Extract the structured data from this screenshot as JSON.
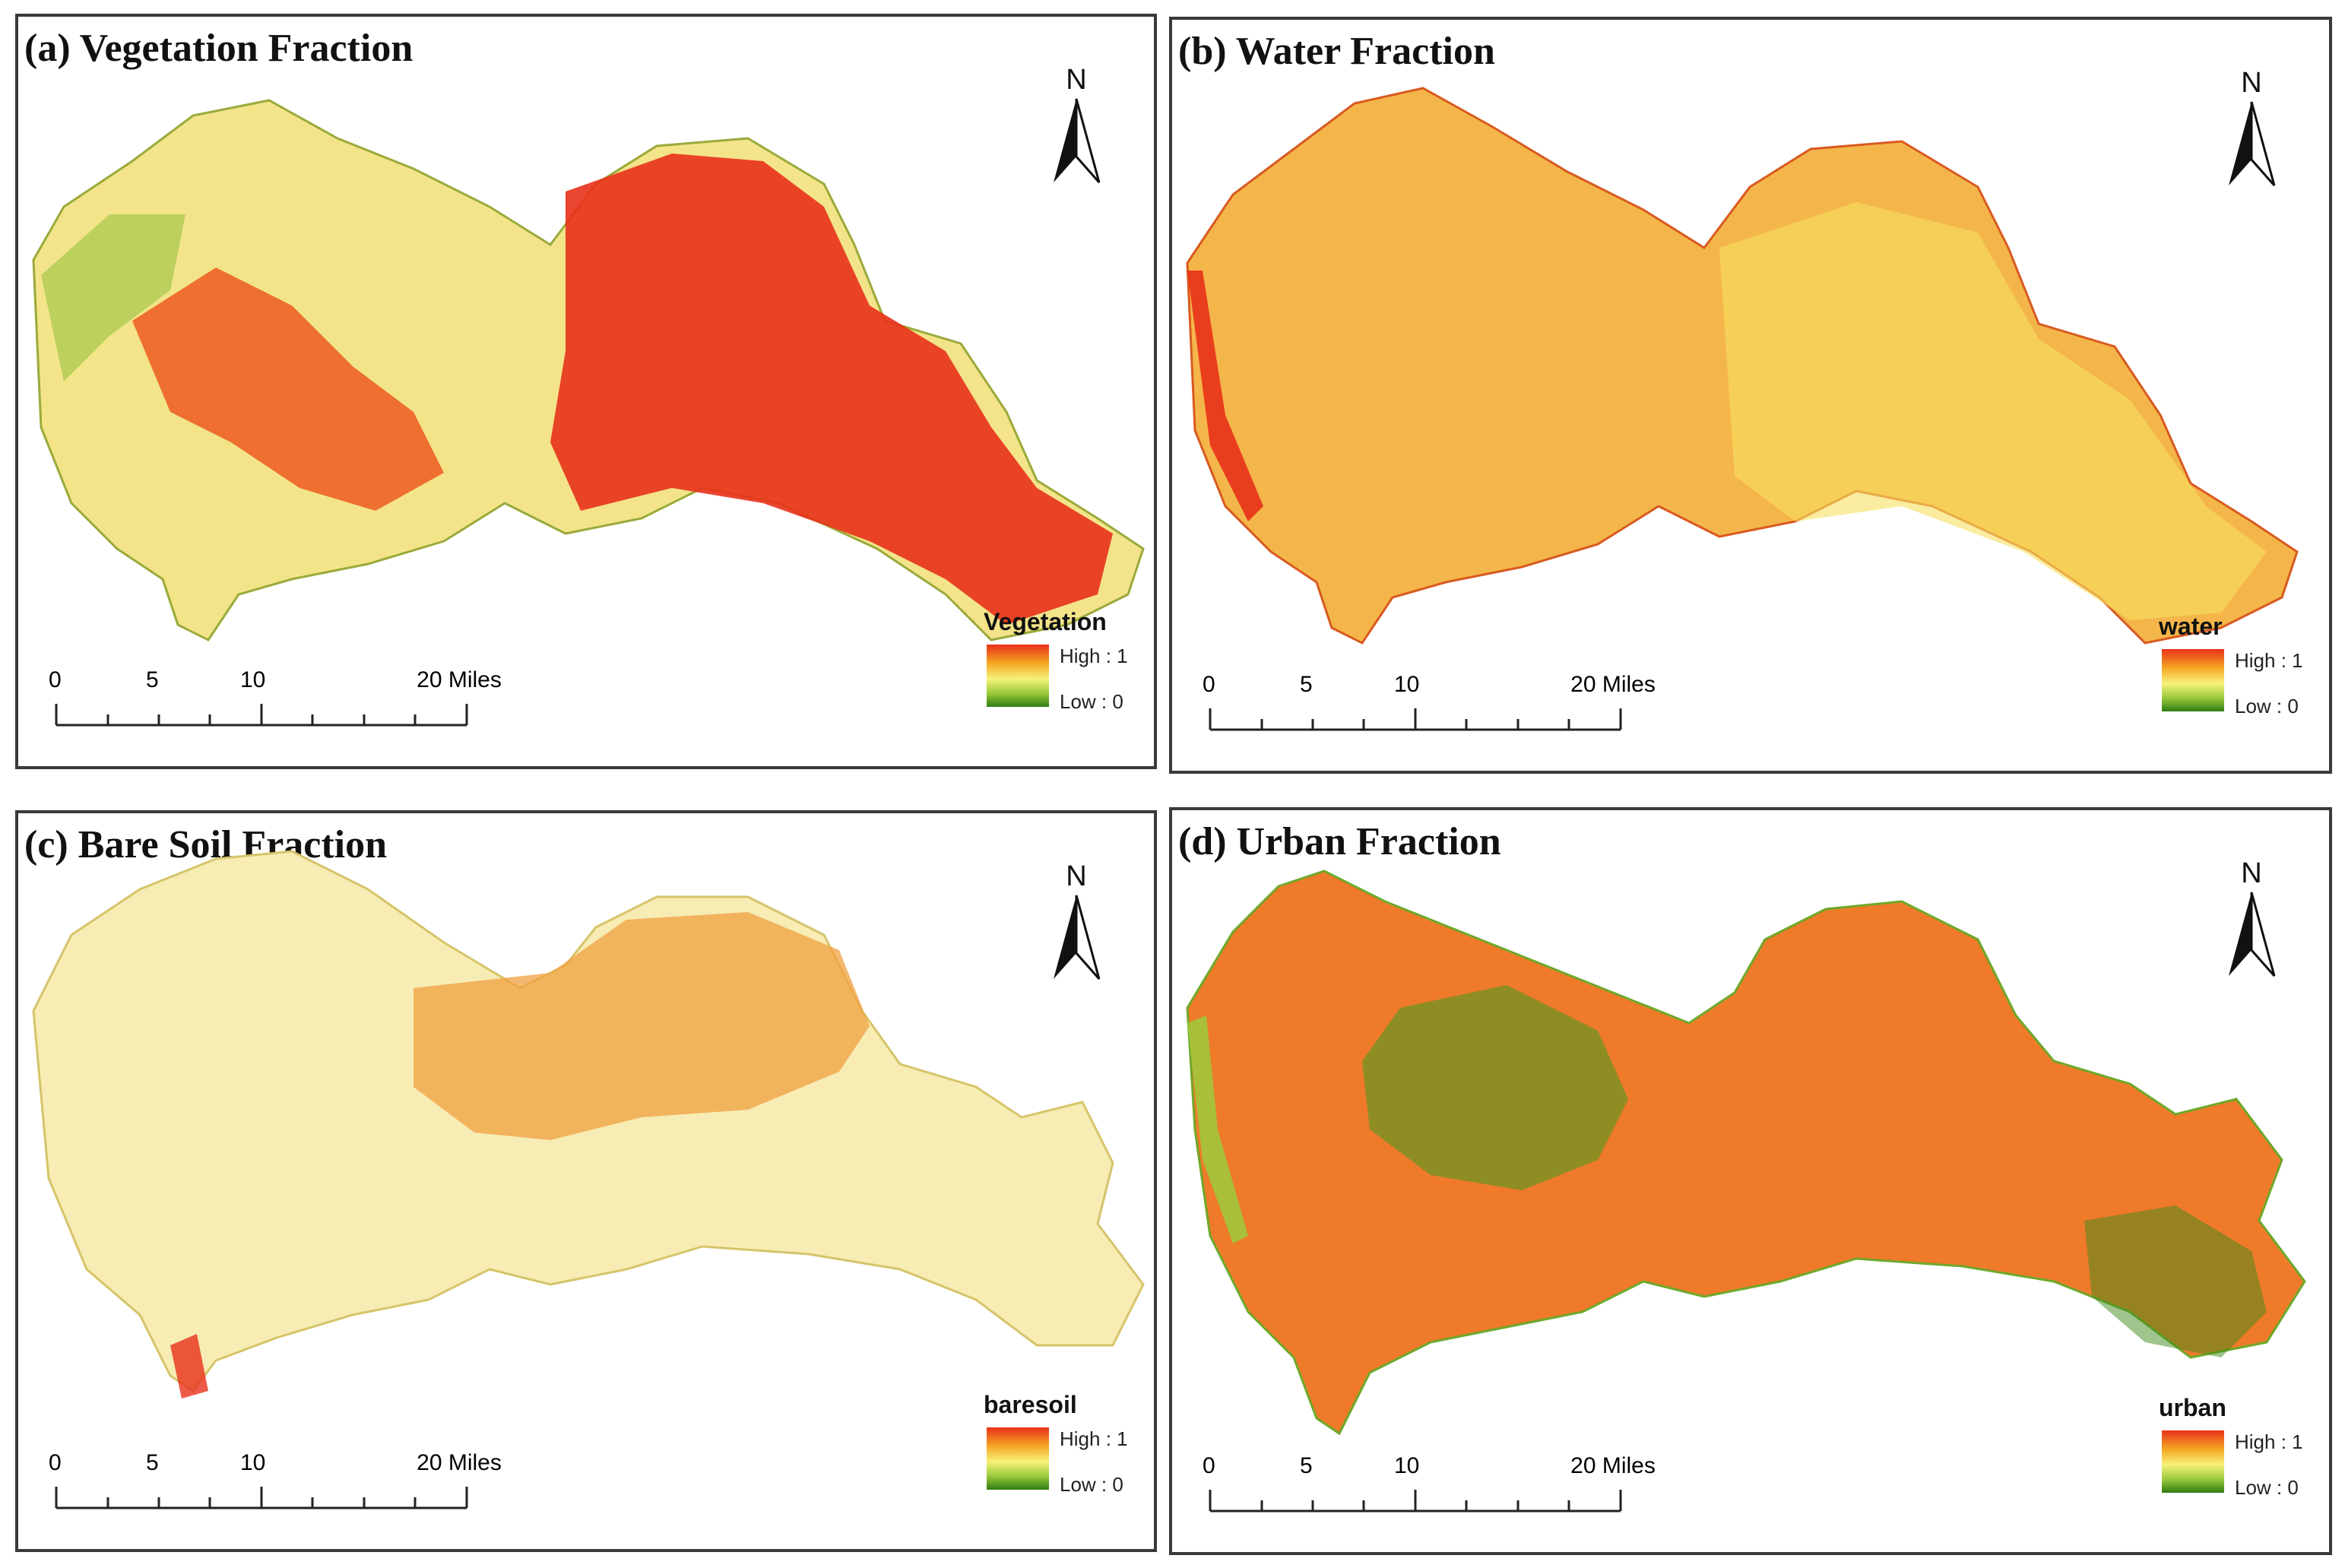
{
  "panels": [
    {
      "title": "(a) Vegetation Fraction",
      "legend_title": "Vegetation"
    },
    {
      "title": "(b) Water Fraction",
      "legend_title": "water"
    },
    {
      "title": "(c) Bare Soil Fraction",
      "legend_title": "baresoil"
    },
    {
      "title": "(d) Urban Fraction",
      "legend_title": "urban"
    }
  ],
  "north_label": "N",
  "legend": {
    "high": "High : 1",
    "low": "Low : 0"
  },
  "scale": {
    "ticks": [
      "0",
      "5",
      "10",
      "20 Miles"
    ]
  },
  "colors": {
    "high": "#e8311a",
    "mid_high": "#f5a623",
    "mid": "#f7f27a",
    "mid_low": "#9ccb3c",
    "low": "#2e7d12"
  }
}
